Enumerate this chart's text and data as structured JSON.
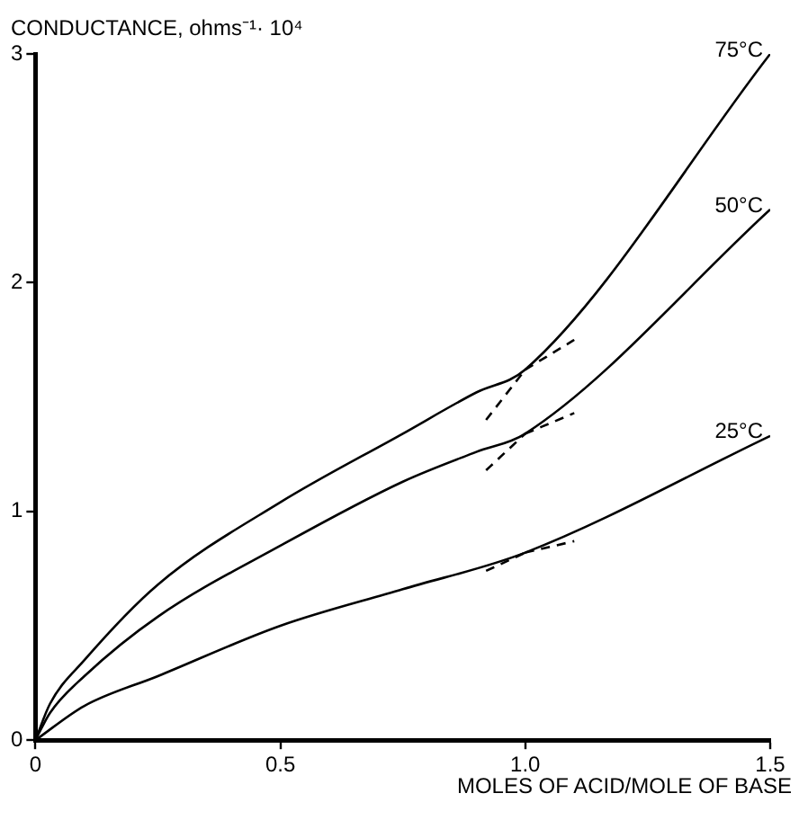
{
  "chart_data": {
    "type": "line",
    "xlabel": "MOLES OF ACID/MOLE OF BASE",
    "ylabel": "CONDUCTANCE, ohms⁻¹· 10⁴",
    "xlim": [
      0,
      1.5
    ],
    "xticks": [
      0,
      0.5,
      {
        "value": 1,
        "label": "1.0"
      },
      1.5
    ],
    "ylim": [
      0,
      3
    ],
    "yticks": [
      0,
      1,
      2,
      3
    ],
    "grid": false,
    "legend": false,
    "marker": "none",
    "series": [
      {
        "name": "75°C",
        "color": "#000000",
        "x": [
          0,
          0.03,
          0.1,
          0.25,
          0.5,
          0.75,
          0.9,
          1.0,
          1.5
        ],
        "values": [
          0,
          0.16,
          0.35,
          0.68,
          1.04,
          1.34,
          1.52,
          1.62,
          3.0
        ]
      },
      {
        "name": "50°C",
        "color": "#000000",
        "x": [
          0,
          0.03,
          0.1,
          0.25,
          0.5,
          0.75,
          0.9,
          1.0,
          1.5
        ],
        "values": [
          0,
          0.12,
          0.28,
          0.54,
          0.85,
          1.13,
          1.26,
          1.34,
          2.32
        ]
      },
      {
        "name": "25°C",
        "color": "#000000",
        "x": [
          0,
          0.1,
          0.25,
          0.5,
          0.75,
          1.0,
          1.5
        ],
        "values": [
          0,
          0.15,
          0.28,
          0.5,
          0.66,
          0.82,
          1.33
        ]
      },
      {
        "color": "#000000",
        "line_style": "dashed",
        "x": [
          0.92,
          1.0
        ],
        "values": [
          1.4,
          1.62
        ]
      },
      {
        "color": "#000000",
        "line_style": "dashed",
        "x": [
          1.0,
          1.1
        ],
        "values": [
          1.62,
          1.75
        ]
      },
      {
        "color": "#000000",
        "line_style": "dashed",
        "x": [
          0.92,
          1.0
        ],
        "values": [
          1.18,
          1.34
        ]
      },
      {
        "color": "#000000",
        "line_style": "dashed",
        "x": [
          1.0,
          1.1
        ],
        "values": [
          1.34,
          1.43
        ]
      },
      {
        "color": "#000000",
        "line_style": "dashed",
        "x": [
          0.92,
          1.0
        ],
        "values": [
          0.74,
          0.82
        ]
      },
      {
        "color": "#000000",
        "line_style": "dashed",
        "x": [
          1.0,
          1.1
        ],
        "values": [
          0.82,
          0.87
        ]
      }
    ]
  }
}
